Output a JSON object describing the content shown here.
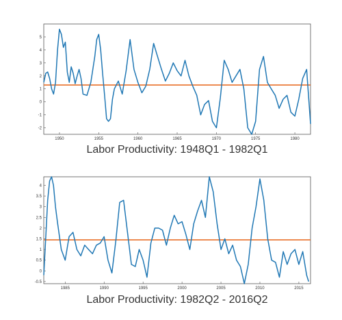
{
  "colors": {
    "series": "#1f77b4",
    "mean_line": "#e8712a",
    "axis": "#444444"
  },
  "chart_data": [
    {
      "type": "line",
      "caption": "Labor Productivity: 1948Q1 - 1982Q1",
      "xlim": [
        1948.0,
        1982.0
      ],
      "ylim": [
        -2.5,
        6.0
      ],
      "xticks": [
        1950,
        1955,
        1960,
        1965,
        1970,
        1975,
        1980
      ],
      "yticks": [
        -2,
        -1,
        0,
        1,
        2,
        3,
        4,
        5
      ],
      "grid": false,
      "mean": 1.3,
      "series": [
        {
          "x": [
            1948.0,
            1948.25,
            1948.5,
            1948.75,
            1949.0,
            1949.25,
            1949.5,
            1949.75,
            1950.0,
            1950.25,
            1950.5,
            1950.75,
            1951.0,
            1951.25,
            1951.5,
            1951.75,
            1952.0,
            1952.25,
            1952.5,
            1952.75,
            1953.0,
            1953.5,
            1954.0,
            1954.5,
            1954.75,
            1955.0,
            1955.25,
            1955.5,
            1955.75,
            1956.0,
            1956.25,
            1956.5,
            1956.75,
            1957.0,
            1957.5,
            1958.0,
            1958.5,
            1959.0,
            1959.5,
            1960.0,
            1960.5,
            1961.0,
            1961.5,
            1962.0,
            1962.5,
            1963.0,
            1963.5,
            1964.0,
            1964.5,
            1965.0,
            1965.5,
            1966.0,
            1966.5,
            1967.0,
            1967.5,
            1968.0,
            1968.5,
            1969.0,
            1969.5,
            1970.0,
            1970.5,
            1971.0,
            1971.5,
            1972.0,
            1972.5,
            1973.0,
            1973.5,
            1974.0,
            1974.5,
            1975.0,
            1975.5,
            1976.0,
            1976.5,
            1977.0,
            1977.5,
            1978.0,
            1978.5,
            1979.0,
            1979.5,
            1980.0,
            1980.5,
            1981.0,
            1981.5,
            1982.0
          ],
          "y": [
            1.5,
            2.2,
            2.3,
            1.8,
            1.0,
            0.6,
            1.5,
            4.0,
            5.6,
            5.2,
            4.2,
            4.6,
            2.3,
            1.5,
            2.7,
            2.2,
            1.4,
            2.0,
            2.5,
            1.8,
            0.6,
            0.5,
            1.5,
            3.5,
            4.8,
            5.2,
            4.0,
            2.2,
            0.5,
            -1.3,
            -1.5,
            -1.3,
            0.2,
            1.0,
            1.6,
            0.6,
            2.4,
            4.8,
            2.5,
            1.5,
            0.7,
            1.2,
            2.5,
            4.5,
            3.5,
            2.5,
            1.6,
            2.2,
            3.0,
            2.4,
            2.0,
            3.2,
            2.0,
            1.2,
            0.5,
            -1.0,
            -0.2,
            0.1,
            -1.5,
            -2.0,
            0.3,
            3.2,
            2.5,
            1.5,
            2.0,
            2.5,
            1.0,
            -2.0,
            -2.5,
            -1.5,
            2.5,
            3.5,
            1.5,
            1.0,
            0.5,
            -0.5,
            0.2,
            0.5,
            -0.8,
            -1.1,
            0.2,
            1.8,
            2.5,
            -1.7
          ]
        }
      ]
    },
    {
      "type": "line",
      "caption": "Labor Productivity: 1982Q2 - 2016Q2",
      "xlim": [
        1982.25,
        2016.5
      ],
      "ylim": [
        -0.6,
        4.4
      ],
      "xticks": [
        1985,
        1990,
        1995,
        2000,
        2005,
        2010,
        2015
      ],
      "yticks": [
        -0.5,
        0,
        0.5,
        1,
        1.5,
        2,
        2.5,
        3,
        3.5,
        4
      ],
      "grid": false,
      "mean": 1.45,
      "series": [
        {
          "x": [
            1982.25,
            1982.5,
            1982.75,
            1983.0,
            1983.25,
            1983.5,
            1983.75,
            1984.0,
            1984.5,
            1985.0,
            1985.5,
            1986.0,
            1986.5,
            1987.0,
            1987.5,
            1988.0,
            1988.5,
            1989.0,
            1989.5,
            1990.0,
            1990.5,
            1991.0,
            1991.5,
            1992.0,
            1992.5,
            1993.0,
            1993.5,
            1994.0,
            1994.5,
            1995.0,
            1995.5,
            1996.0,
            1996.5,
            1997.0,
            1997.5,
            1998.0,
            1998.5,
            1999.0,
            1999.5,
            2000.0,
            2000.5,
            2001.0,
            2001.5,
            2002.0,
            2002.5,
            2003.0,
            2003.5,
            2004.0,
            2004.5,
            2005.0,
            2005.5,
            2006.0,
            2006.5,
            2007.0,
            2007.5,
            2008.0,
            2008.5,
            2009.0,
            2009.5,
            2010.0,
            2010.5,
            2011.0,
            2011.5,
            2012.0,
            2012.5,
            2013.0,
            2013.5,
            2014.0,
            2014.5,
            2015.0,
            2015.5,
            2016.0,
            2016.25
          ],
          "y": [
            -0.2,
            1.5,
            3.3,
            4.2,
            4.4,
            4.0,
            3.0,
            2.3,
            1.0,
            0.5,
            1.6,
            1.8,
            1.0,
            0.7,
            1.2,
            1.0,
            0.8,
            1.2,
            1.3,
            1.6,
            0.5,
            -0.1,
            1.4,
            3.2,
            3.3,
            1.8,
            0.3,
            0.2,
            1.0,
            0.5,
            -0.3,
            1.3,
            2.0,
            2.0,
            1.9,
            1.2,
            2.0,
            2.6,
            2.2,
            2.3,
            1.7,
            1.0,
            2.2,
            2.8,
            3.3,
            2.5,
            4.4,
            3.7,
            2.2,
            1.0,
            1.5,
            0.8,
            1.2,
            0.5,
            0.2,
            -0.6,
            0.3,
            2.0,
            3.0,
            4.3,
            3.3,
            1.5,
            0.5,
            0.4,
            -0.3,
            0.9,
            0.3,
            0.8,
            1.0,
            0.3,
            0.9,
            -0.2,
            -0.5
          ]
        }
      ]
    }
  ]
}
